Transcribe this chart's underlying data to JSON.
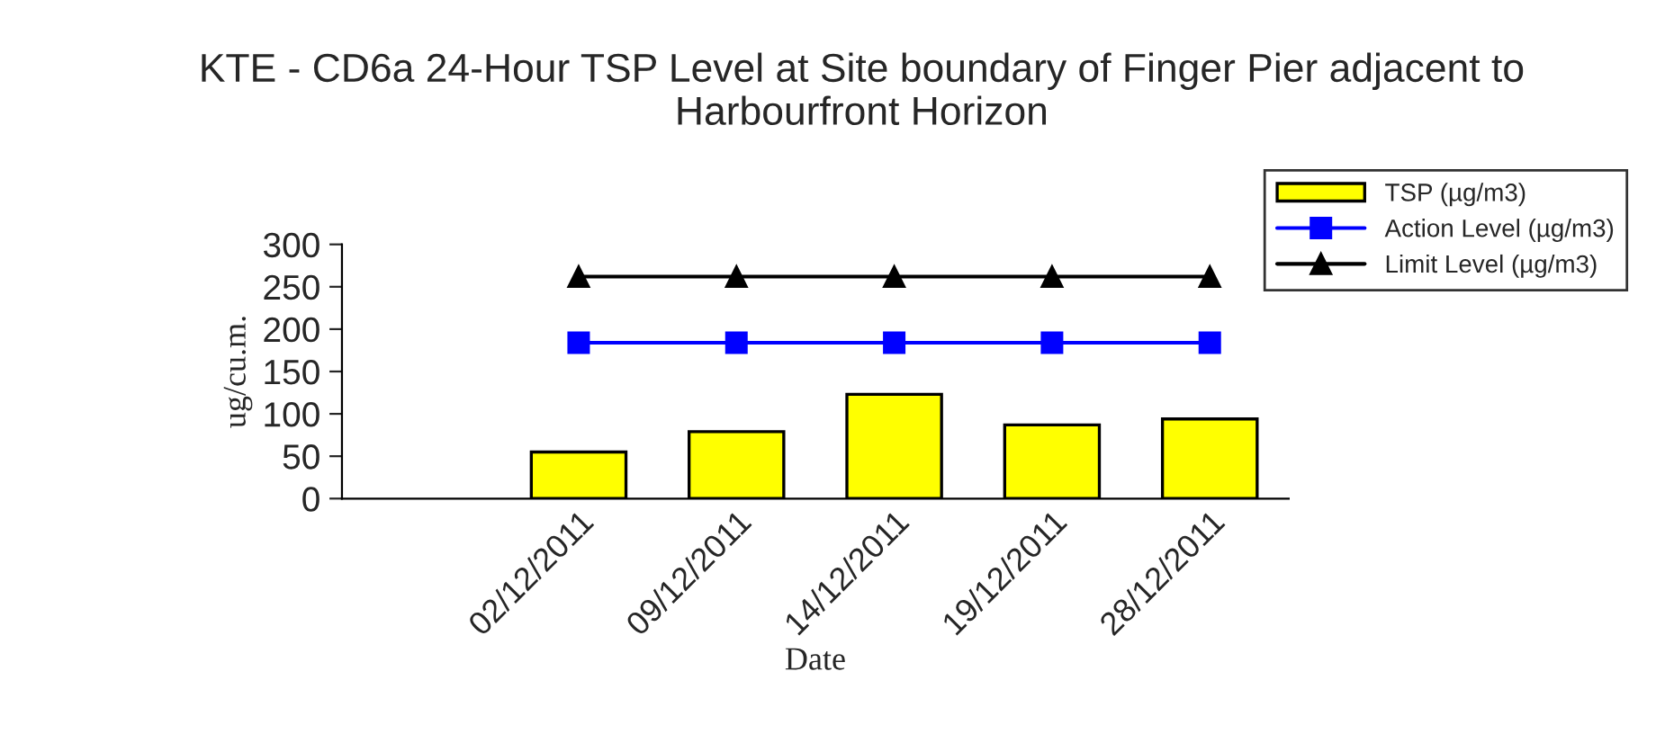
{
  "chart_data": {
    "type": "bar",
    "title": "KTE - CD6a 24-Hour TSP Level at Site boundary of Finger Pier adjacent to Harbourfront Horizon",
    "xlabel": "Date",
    "ylabel": "ug/cu.m.",
    "categories": [
      null,
      "02/12/2011",
      "09/12/2011",
      "14/12/2011",
      "19/12/2011",
      "28/12/2011"
    ],
    "series": [
      {
        "name": "TSP (µg/m3)",
        "type": "bar",
        "color": "#ffff00",
        "values": [
          null,
          55,
          79,
          123,
          87,
          94
        ]
      },
      {
        "name": "Action Level (µg/m3)",
        "type": "line",
        "color": "#0000ff",
        "marker": "square",
        "values": [
          null,
          184,
          184,
          184,
          184,
          184
        ]
      },
      {
        "name": "Limit Level (µg/m3)",
        "type": "line",
        "color": "#000000",
        "marker": "triangle",
        "values": [
          null,
          262,
          262,
          262,
          262,
          262
        ]
      }
    ],
    "ylim": [
      0,
      300
    ],
    "yticks": [
      0,
      50,
      100,
      150,
      200,
      250,
      300
    ],
    "grid": false,
    "legend": "top right"
  }
}
